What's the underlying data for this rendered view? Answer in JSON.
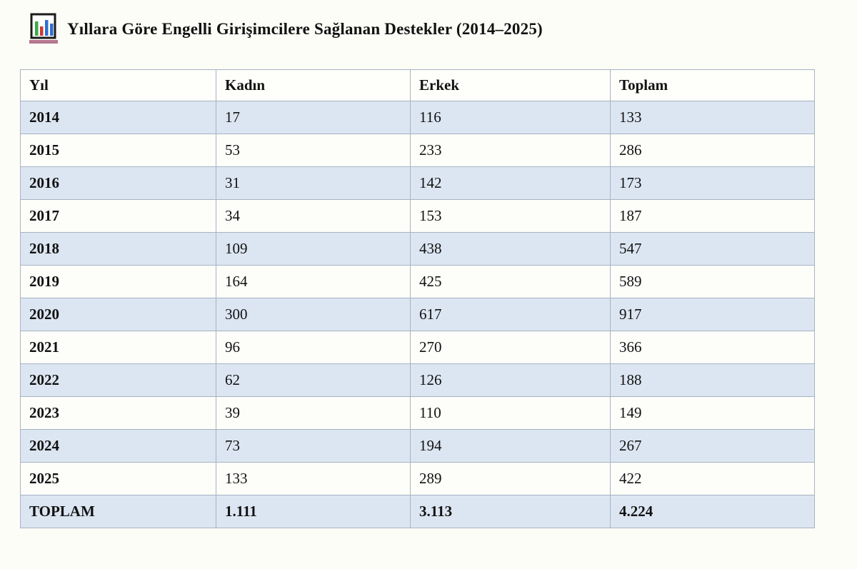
{
  "page": {
    "title": "Yıllara Göre Engelli Girişimcilere Sağlanan Destekler (2014–2025)"
  },
  "table": {
    "columns": [
      "Yıl",
      "Kadın",
      "Erkek",
      "Toplam"
    ],
    "rows": [
      [
        "2014",
        "17",
        "116",
        "133"
      ],
      [
        "2015",
        "53",
        "233",
        "286"
      ],
      [
        "2016",
        "31",
        "142",
        "173"
      ],
      [
        "2017",
        "34",
        "153",
        "187"
      ],
      [
        "2018",
        "109",
        "438",
        "547"
      ],
      [
        "2019",
        "164",
        "425",
        "589"
      ],
      [
        "2020",
        "300",
        "617",
        "917"
      ],
      [
        "2021",
        "96",
        "270",
        "366"
      ],
      [
        "2022",
        "62",
        "126",
        "188"
      ],
      [
        "2023",
        "39",
        "110",
        "149"
      ],
      [
        "2024",
        "73",
        "194",
        "267"
      ],
      [
        "2025",
        "133",
        "289",
        "422"
      ]
    ],
    "total_row": [
      "TOPLAM",
      "1.111",
      "3.113",
      "4.224"
    ]
  },
  "chart_data": {
    "type": "table",
    "title": "Yıllara Göre Engelli Girişimcilere Sağlanan Destekler (2014–2025)",
    "columns": [
      "Yıl",
      "Kadın",
      "Erkek",
      "Toplam"
    ],
    "categories": [
      "2014",
      "2015",
      "2016",
      "2017",
      "2018",
      "2019",
      "2020",
      "2021",
      "2022",
      "2023",
      "2024",
      "2025"
    ],
    "series": [
      {
        "name": "Kadın",
        "values": [
          17,
          53,
          31,
          34,
          109,
          164,
          300,
          96,
          62,
          39,
          73,
          133
        ]
      },
      {
        "name": "Erkek",
        "values": [
          116,
          233,
          142,
          153,
          438,
          425,
          617,
          270,
          126,
          110,
          194,
          289
        ]
      },
      {
        "name": "Toplam",
        "values": [
          133,
          286,
          173,
          187,
          547,
          589,
          917,
          366,
          188,
          149,
          267,
          422
        ]
      }
    ],
    "totals": {
      "Kadın": 1111,
      "Erkek": 3113,
      "Toplam": 4224
    },
    "legend_position": "none",
    "grid": true
  },
  "colors": {
    "background": "#fdfdf7",
    "row_stripe": "#dce6f2",
    "row_plain": "#fdfdfa",
    "border": "#a7b3c1",
    "text": "#111111",
    "icon_frame": "#1a1a1a",
    "icon_bar_green": "#3aaa4a",
    "icon_bar_red": "#cc3a32",
    "icon_bar_blue": "#2f6fd0",
    "icon_underline": "#b5778f"
  }
}
